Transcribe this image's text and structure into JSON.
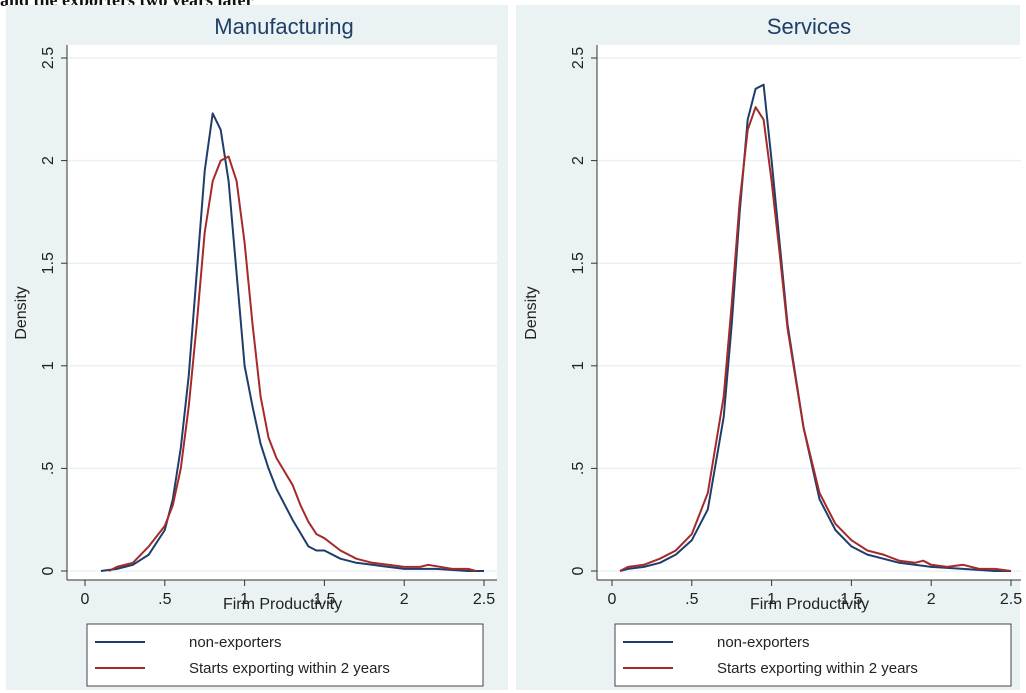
{
  "header": {
    "text": "and the exporters two years later"
  },
  "chart_data": [
    {
      "type": "line",
      "title": "Manufacturing",
      "xlabel": "Firm Productivity",
      "ylabel": "Density",
      "xlim": [
        0,
        2.5
      ],
      "ylim": [
        0,
        2.5
      ],
      "x_ticks": [
        "0",
        ".5",
        "1",
        "1.5",
        "2",
        "2.5"
      ],
      "y_ticks": [
        "0",
        ".5",
        "1",
        "1.5",
        "2",
        "2.5"
      ],
      "grid": true,
      "legend": "bottom",
      "series": [
        {
          "name": "non-exporters",
          "color": "#1f3d6b",
          "x": [
            0.1,
            0.2,
            0.3,
            0.4,
            0.5,
            0.55,
            0.6,
            0.65,
            0.7,
            0.75,
            0.8,
            0.85,
            0.9,
            0.95,
            1.0,
            1.05,
            1.1,
            1.15,
            1.2,
            1.3,
            1.4,
            1.45,
            1.5,
            1.6,
            1.7,
            1.8,
            1.9,
            2.0,
            2.2,
            2.4,
            2.5
          ],
          "y": [
            0.0,
            0.01,
            0.03,
            0.08,
            0.2,
            0.35,
            0.6,
            0.95,
            1.45,
            1.95,
            2.23,
            2.15,
            1.9,
            1.45,
            1.0,
            0.8,
            0.62,
            0.5,
            0.4,
            0.25,
            0.12,
            0.1,
            0.1,
            0.06,
            0.04,
            0.03,
            0.02,
            0.01,
            0.01,
            0.0,
            0.0
          ]
        },
        {
          "name": "Starts exporting within 2 years",
          "color": "#a52a2a",
          "x": [
            0.15,
            0.2,
            0.3,
            0.4,
            0.5,
            0.55,
            0.6,
            0.65,
            0.7,
            0.75,
            0.8,
            0.85,
            0.9,
            0.95,
            1.0,
            1.05,
            1.1,
            1.15,
            1.2,
            1.3,
            1.35,
            1.4,
            1.45,
            1.5,
            1.6,
            1.7,
            1.8,
            1.9,
            2.0,
            2.1,
            2.15,
            2.3,
            2.4,
            2.45
          ],
          "y": [
            0.0,
            0.02,
            0.04,
            0.12,
            0.22,
            0.32,
            0.5,
            0.8,
            1.2,
            1.65,
            1.9,
            2.0,
            2.02,
            1.9,
            1.6,
            1.2,
            0.85,
            0.65,
            0.55,
            0.42,
            0.32,
            0.24,
            0.18,
            0.16,
            0.1,
            0.06,
            0.04,
            0.03,
            0.02,
            0.02,
            0.03,
            0.01,
            0.01,
            0.0
          ]
        }
      ]
    },
    {
      "type": "line",
      "title": "Services",
      "xlabel": "Firm Productivity",
      "ylabel": "Density",
      "xlim": [
        0,
        2.5
      ],
      "ylim": [
        0,
        2.5
      ],
      "x_ticks": [
        "0",
        ".5",
        "1",
        "1.5",
        "2",
        "2.5"
      ],
      "y_ticks": [
        "0",
        ".5",
        "1",
        "1.5",
        "2",
        "2.5"
      ],
      "grid": true,
      "legend": "bottom",
      "series": [
        {
          "name": "non-exporters",
          "color": "#1f3d6b",
          "x": [
            0.05,
            0.1,
            0.2,
            0.3,
            0.4,
            0.5,
            0.6,
            0.7,
            0.75,
            0.8,
            0.85,
            0.9,
            0.95,
            1.0,
            1.05,
            1.1,
            1.2,
            1.3,
            1.4,
            1.5,
            1.6,
            1.7,
            1.8,
            2.0,
            2.2,
            2.4,
            2.5
          ],
          "y": [
            0.0,
            0.01,
            0.02,
            0.04,
            0.08,
            0.15,
            0.3,
            0.75,
            1.2,
            1.75,
            2.2,
            2.35,
            2.37,
            2.0,
            1.6,
            1.2,
            0.7,
            0.35,
            0.2,
            0.12,
            0.08,
            0.06,
            0.04,
            0.02,
            0.01,
            0.0,
            0.0
          ]
        },
        {
          "name": "Starts exporting within 2 years",
          "color": "#a52a2a",
          "x": [
            0.05,
            0.1,
            0.2,
            0.3,
            0.4,
            0.5,
            0.6,
            0.7,
            0.75,
            0.8,
            0.85,
            0.9,
            0.95,
            1.0,
            1.05,
            1.1,
            1.2,
            1.3,
            1.4,
            1.5,
            1.6,
            1.7,
            1.8,
            1.9,
            1.95,
            2.0,
            2.1,
            2.2,
            2.3,
            2.4,
            2.5
          ],
          "y": [
            0.0,
            0.02,
            0.03,
            0.06,
            0.1,
            0.18,
            0.38,
            0.85,
            1.3,
            1.8,
            2.15,
            2.26,
            2.2,
            1.9,
            1.55,
            1.18,
            0.7,
            0.38,
            0.23,
            0.15,
            0.1,
            0.08,
            0.05,
            0.04,
            0.05,
            0.03,
            0.02,
            0.03,
            0.01,
            0.01,
            0.0
          ]
        }
      ]
    }
  ]
}
